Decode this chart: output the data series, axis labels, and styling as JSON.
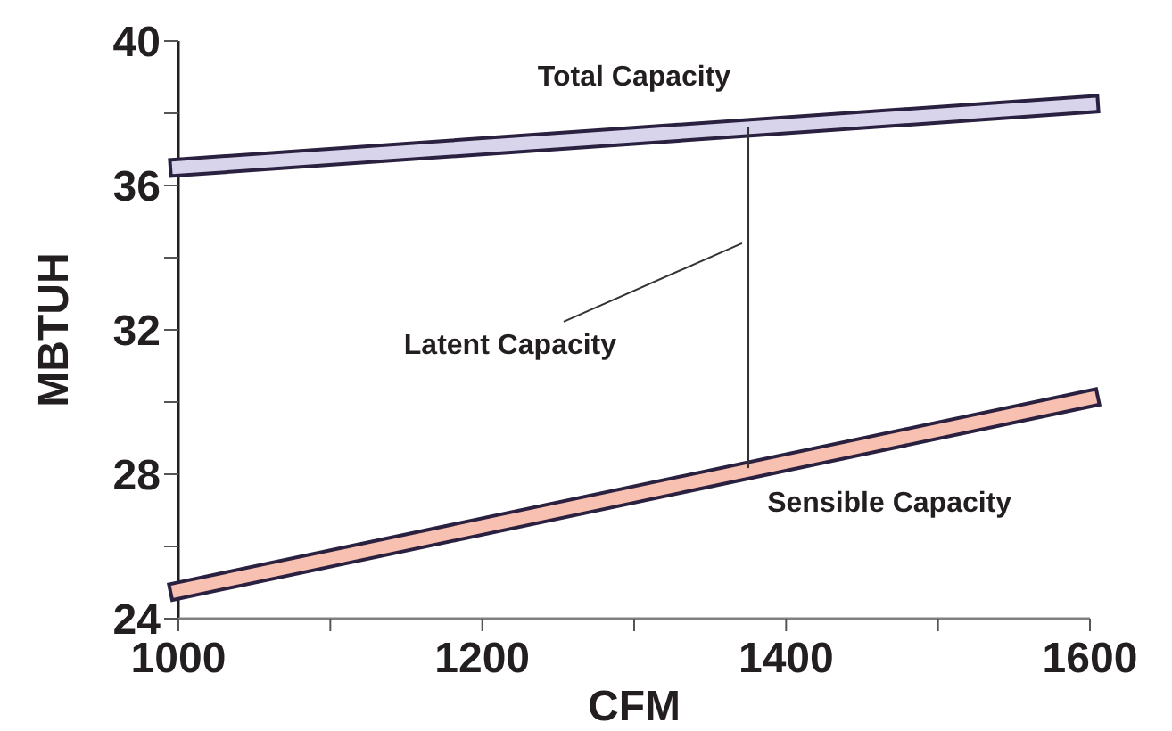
{
  "chart_data": {
    "type": "line",
    "xlabel": "CFM",
    "ylabel": "MBTUH",
    "xlim": [
      1000,
      1600
    ],
    "ylim": [
      24,
      40
    ],
    "xticks": [
      1000,
      {
        "value": 1100,
        "label": null
      },
      1200,
      {
        "value": 1300,
        "label": null
      },
      1400,
      {
        "value": 1500,
        "label": null
      },
      1600
    ],
    "yticks": [
      24,
      {
        "value": 26,
        "label": null
      },
      28,
      {
        "value": 30,
        "label": null
      },
      32,
      {
        "value": 34,
        "label": null
      },
      36,
      {
        "value": 38,
        "label": null
      },
      40
    ],
    "grid": false,
    "legend": false,
    "marker": "none",
    "line_style": "solid",
    "series": [
      {
        "name": "Total Capacity",
        "color": "#d8d4ec",
        "x": [
          1000,
          1600
        ],
        "values": [
          36.5,
          38.25
        ]
      },
      {
        "name": "Sensible Capacity",
        "color": "#f8c0b0",
        "x": [
          1000,
          1600
        ],
        "values": [
          24.78,
          30.1
        ]
      },
      {
        "color": "#333333",
        "x": [
          1375,
          1375
        ],
        "values": [
          28.2,
          37.6
        ]
      }
    ],
    "annotations": [
      {
        "text": "Latent Capacity",
        "x": 1371,
        "y": 34.4
      }
    ]
  }
}
